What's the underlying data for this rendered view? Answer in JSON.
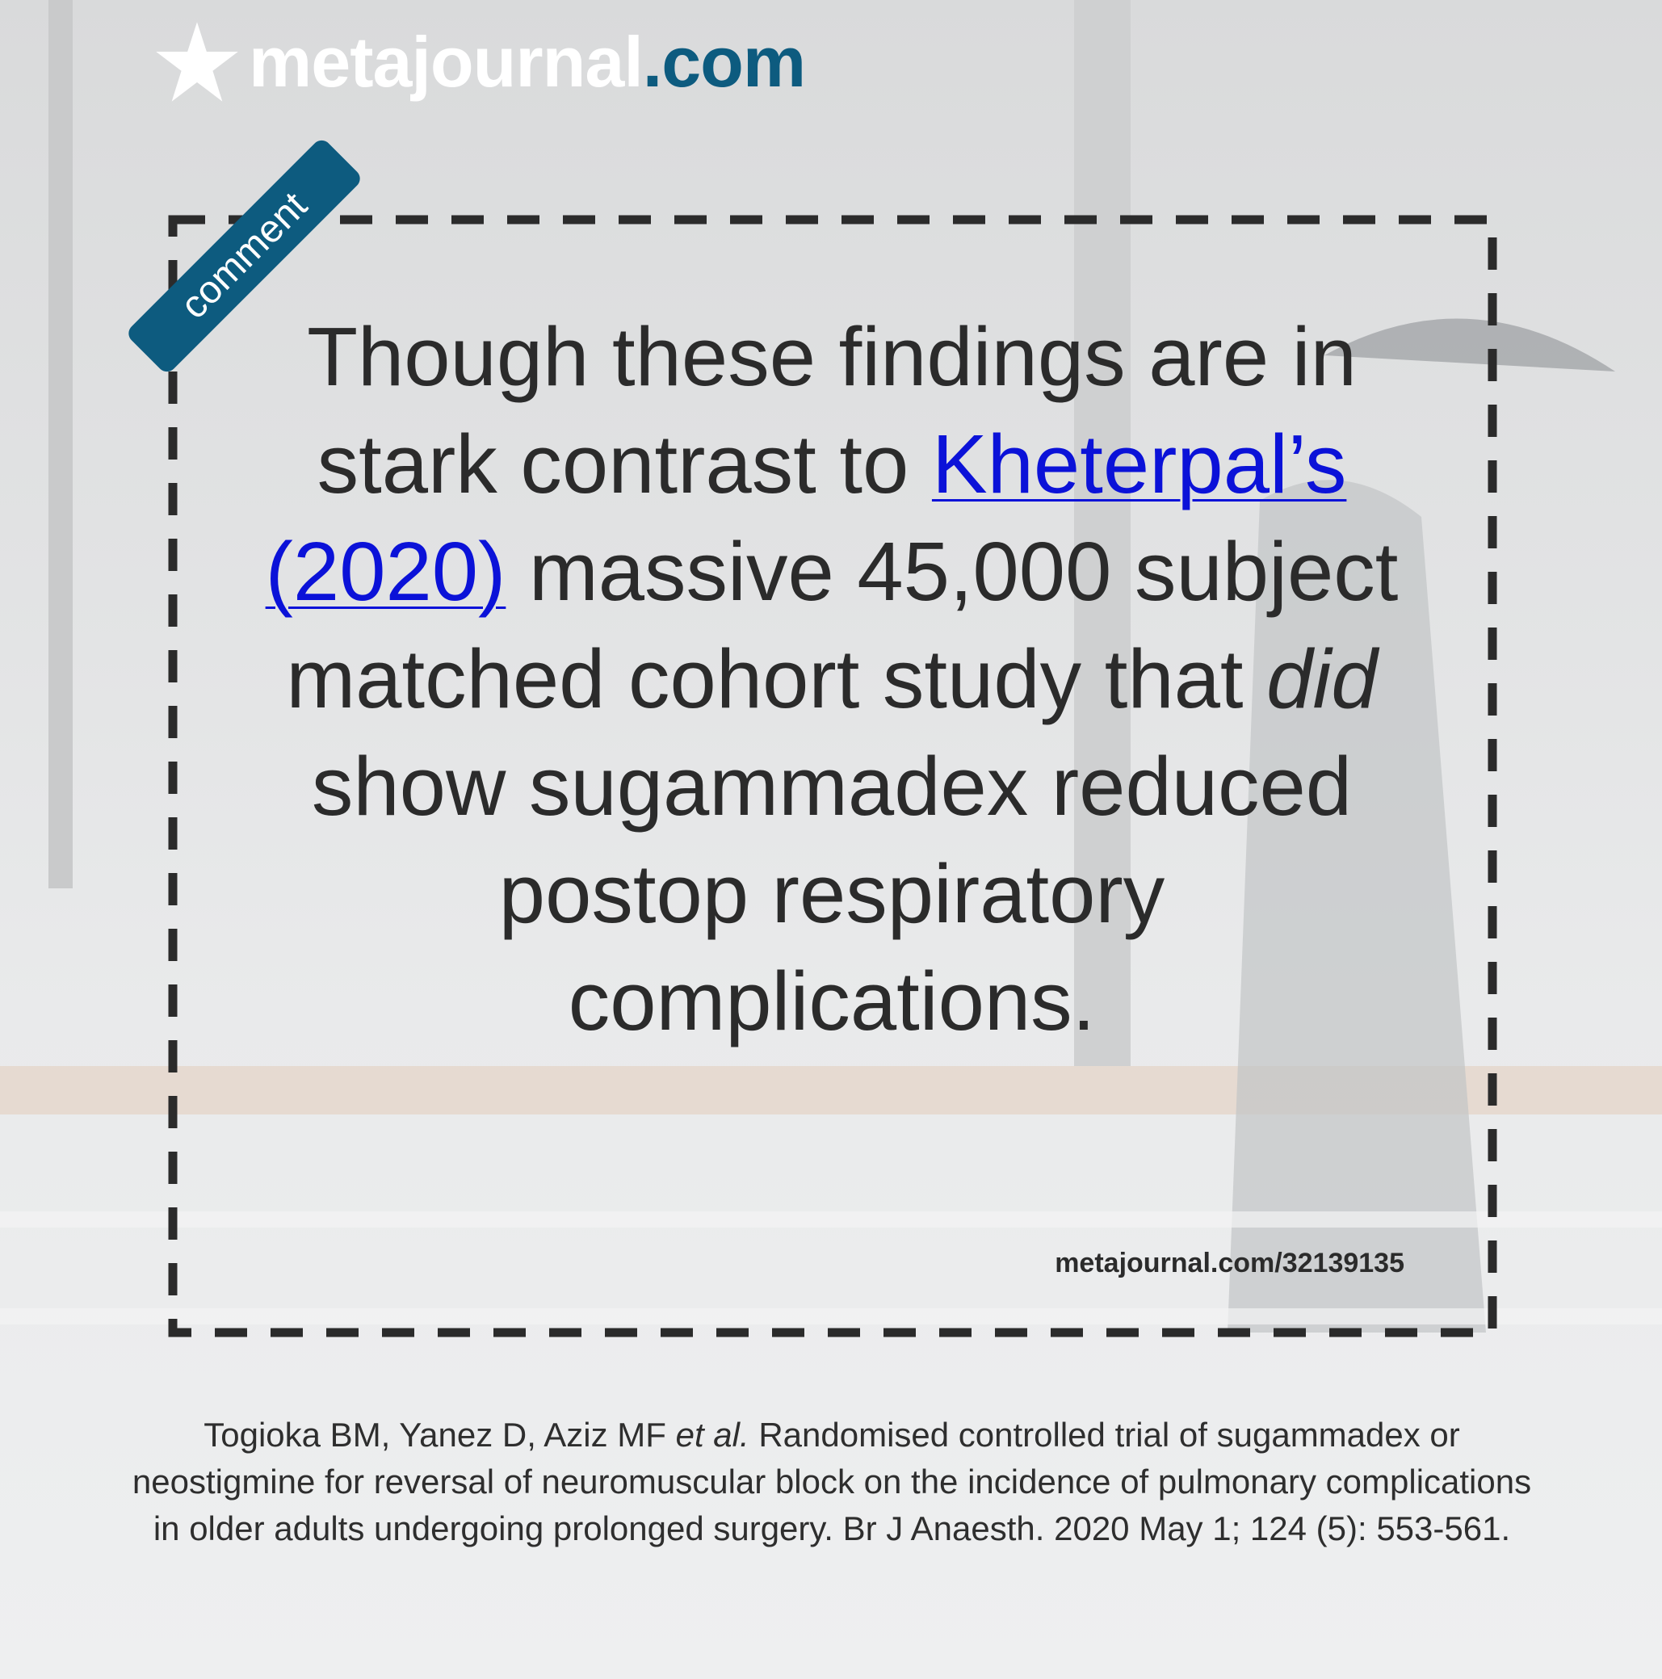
{
  "brand": {
    "name": "metajournal",
    "tld": ".com"
  },
  "tag": "comment",
  "quote": [
    "Though these findings are in stark contrast to ",
    "Kheterpal’s (2020)",
    " massive 45,000 subject matched cohort study that ",
    "did",
    " show sugammadex reduced postop respiratory complications."
  ],
  "url": "metajournal.com/32139135",
  "citation": [
    "Togioka BM, Yanez D, Aziz MF ",
    "et al.",
    " Randomised controlled trial of sugammadex or neostigmine for reversal of neuromuscular block on the incidence of pulmonary complications in older adults undergoing prolonged surgery. Br J Anaesth. 2020 May 1; 124 (5): 553-561."
  ]
}
